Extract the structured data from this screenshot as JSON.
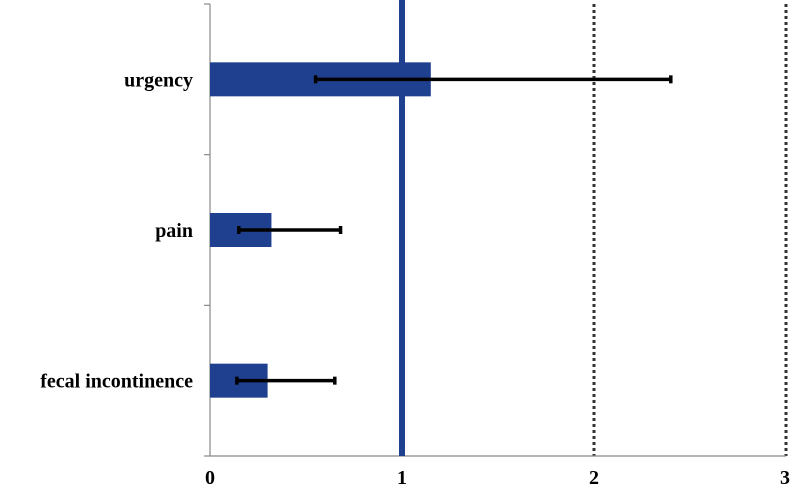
{
  "chart_data": {
    "type": "bar",
    "orientation": "horizontal",
    "title": "",
    "xlabel": "",
    "ylabel": "",
    "categories": [
      "urgency",
      "pain",
      "fecal incontinence"
    ],
    "values": [
      1.15,
      0.32,
      0.3
    ],
    "error_low": [
      0.55,
      0.15,
      0.14
    ],
    "error_high": [
      2.4,
      0.68,
      0.65
    ],
    "xlim": [
      0,
      3
    ],
    "xticks": [
      0,
      1,
      2,
      3
    ],
    "xtick_labels": [
      "0",
      "1",
      "2",
      "3"
    ],
    "reference_line": 1,
    "dashed_gridlines": [
      2,
      3
    ],
    "grid": false,
    "legend": "none",
    "colors": {
      "bar": "#1F3F8F",
      "reference_line": "#1F3F8F",
      "error_bar": "#000000",
      "gridline": "#333333",
      "axis": "#888888"
    }
  }
}
